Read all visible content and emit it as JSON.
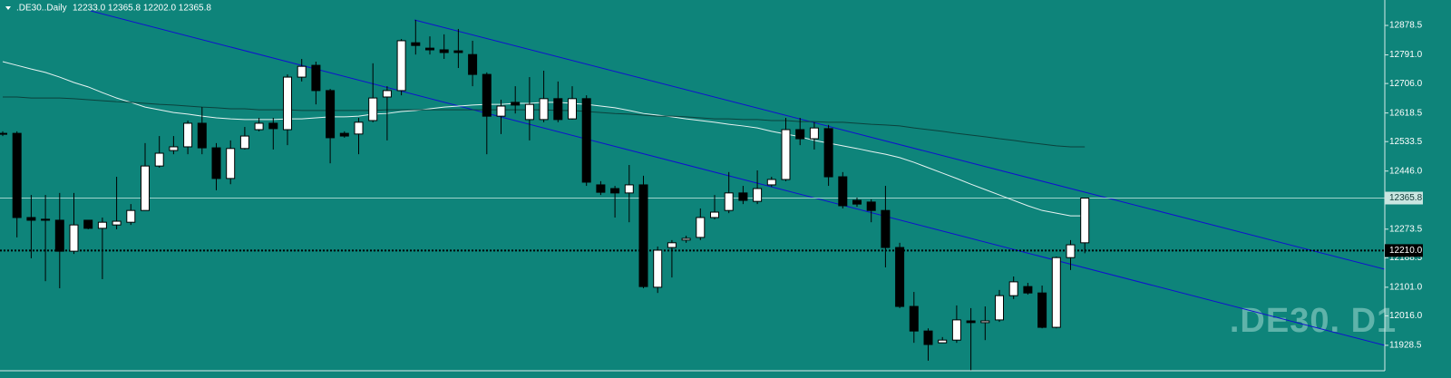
{
  "chart_data": {
    "type": "candlestick",
    "title": ".DE30..Daily",
    "subtitle": "12233.0 12365.8 12202.0 12365.8",
    "watermark": ".DE30. D1",
    "ylim": [
      11853,
      12954
    ],
    "yticks": [
      12878.5,
      {
        "value": 12791,
        "label": "12791.0"
      },
      {
        "value": 12706,
        "label": "12706.0"
      },
      12618.5,
      12533.5,
      {
        "value": 12446,
        "label": "12446.0"
      },
      12273.5,
      12188.5,
      {
        "value": 12101,
        "label": "12101.0"
      },
      {
        "value": 12016,
        "label": "12016.0"
      },
      11928.5
    ],
    "last_price": 12365.8,
    "level": {
      "value": 12210,
      "label": "12210.0"
    },
    "bull_color": "#ffffff",
    "bear_color": "#000000",
    "open": [
      12556,
      12558,
      12308,
      12303,
      12300,
      12208,
      12300,
      12276,
      12286,
      12294,
      12329,
      12461,
      12507,
      12518,
      12588,
      12515,
      12424,
      12513,
      12569,
      12588,
      12569,
      12725,
      12760,
      12685,
      12558,
      12556,
      12596,
      12666,
      12685,
      12827,
      12811,
      12806,
      12803,
      12792,
      12733,
      12609,
      12650,
      12599,
      12599,
      12661,
      12601,
      12661,
      12405,
      12394,
      12381,
      12405,
      12101,
      12219,
      12241,
      12249,
      12308,
      12329,
      12381,
      12356,
      12405,
      12421,
      12569,
      12542,
      12572,
      12429,
      12359,
      12354,
      12329,
      12219,
      12044,
      11971,
      11936,
      11944,
      12001,
      11996,
      12004,
      12076,
      12103,
      12084,
      11982,
      12189,
      12233
    ],
    "high": [
      12564,
      12564,
      12375,
      12375,
      12381,
      12381,
      12300,
      12308,
      12429,
      12348,
      12529,
      12550,
      12550,
      12596,
      12636,
      12529,
      12537,
      12577,
      12604,
      12604,
      12733,
      12779,
      12771,
      12690,
      12564,
      12604,
      12766,
      12698,
      12838,
      12895,
      12846,
      12852,
      12868,
      12833,
      12739,
      12658,
      12698,
      12725,
      12744,
      12712,
      12698,
      12671,
      12416,
      12402,
      12464,
      12432,
      12222,
      12241,
      12254,
      12335,
      12375,
      12443,
      12402,
      12448,
      12429,
      12604,
      12604,
      12591,
      12583,
      12443,
      12367,
      12362,
      12402,
      12233,
      12087,
      11979,
      11953,
      12047,
      12039,
      12044,
      12093,
      12133,
      12114,
      12106,
      12192,
      12241,
      12365.8
    ],
    "low": [
      12550,
      12249,
      12187,
      12119,
      12098,
      12200,
      12273,
      12125,
      12273,
      12286,
      12329,
      12456,
      12496,
      12496,
      12496,
      12389,
      12407,
      12510,
      12564,
      12510,
      12523,
      12712,
      12644,
      12469,
      12545,
      12496,
      12591,
      12537,
      12671,
      12792,
      12792,
      12779,
      12752,
      12698,
      12496,
      12556,
      12617,
      12537,
      12591,
      12591,
      12599,
      12402,
      12375,
      12308,
      12294,
      12098,
      12084,
      12130,
      12233,
      12241,
      12303,
      12321,
      12348,
      12348,
      12399,
      12416,
      12523,
      12510,
      12402,
      12335,
      12340,
      12294,
      12160,
      12039,
      11936,
      11883,
      11936,
      11936,
      11853,
      11944,
      11998,
      12066,
      12079,
      11979,
      11979,
      12152,
      12202
    ],
    "close": [
      12558,
      12308,
      12300,
      12300,
      12208,
      12286,
      12276,
      12294,
      12297,
      12329,
      12461,
      12499,
      12518,
      12588,
      12515,
      12424,
      12513,
      12550,
      12588,
      12572,
      12725,
      12757,
      12685,
      12545,
      12550,
      12591,
      12663,
      12685,
      12833,
      12819,
      12806,
      12798,
      12798,
      12733,
      12609,
      12639,
      12642,
      12644,
      12661,
      12599,
      12661,
      12413,
      12383,
      12381,
      12405,
      12103,
      12211,
      12233,
      12246,
      12308,
      12324,
      12381,
      12359,
      12394,
      12421,
      12569,
      12542,
      12574,
      12429,
      12343,
      12348,
      12329,
      12219,
      12044,
      11971,
      11931,
      11944,
      12004,
      11996,
      12001,
      12076,
      12117,
      12084,
      11982,
      12189,
      12227,
      12365.8
    ],
    "overlays": [
      {
        "color": "#ffffff",
        "values": [
          12771,
          12760,
          12749,
          12739,
          12725,
          12709,
          12696,
          12679,
          12663,
          12650,
          12636,
          12628,
          12620,
          12615,
          12609,
          12604,
          12601,
          12599,
          12599,
          12599,
          12601,
          12601,
          12604,
          12607,
          12607,
          12609,
          12615,
          12617,
          12623,
          12626,
          12631,
          12636,
          12639,
          12642,
          12644,
          12644,
          12647,
          12647,
          12650,
          12650,
          12647,
          12644,
          12639,
          12634,
          12626,
          12617,
          12612,
          12607,
          12601,
          12596,
          12591,
          12585,
          12580,
          12574,
          12564,
          12556,
          12548,
          12537,
          12529,
          12521,
          12513,
          12504,
          12496,
          12486,
          12472,
          12456,
          12440,
          12424,
          12407,
          12391,
          12375,
          12359,
          12343,
          12329,
          12321,
          12313,
          12313
        ]
      },
      {
        "color": "#0b3a35",
        "values": [
          12666,
          12666,
          12663,
          12663,
          12663,
          12661,
          12658,
          12655,
          12652,
          12650,
          12647,
          12644,
          12642,
          12639,
          12636,
          12634,
          12631,
          12631,
          12628,
          12628,
          12628,
          12626,
          12626,
          12626,
          12626,
          12626,
          12626,
          12628,
          12628,
          12628,
          12628,
          12628,
          12628,
          12628,
          12628,
          12628,
          12628,
          12628,
          12628,
          12626,
          12626,
          12623,
          12620,
          12617,
          12615,
          12612,
          12609,
          12609,
          12607,
          12604,
          12601,
          12601,
          12599,
          12599,
          12596,
          12596,
          12593,
          12593,
          12591,
          12591,
          12588,
          12585,
          12583,
          12580,
          12574,
          12569,
          12564,
          12558,
          12553,
          12548,
          12542,
          12537,
          12531,
          12526,
          12521,
          12518,
          12518
        ]
      }
    ]
  }
}
